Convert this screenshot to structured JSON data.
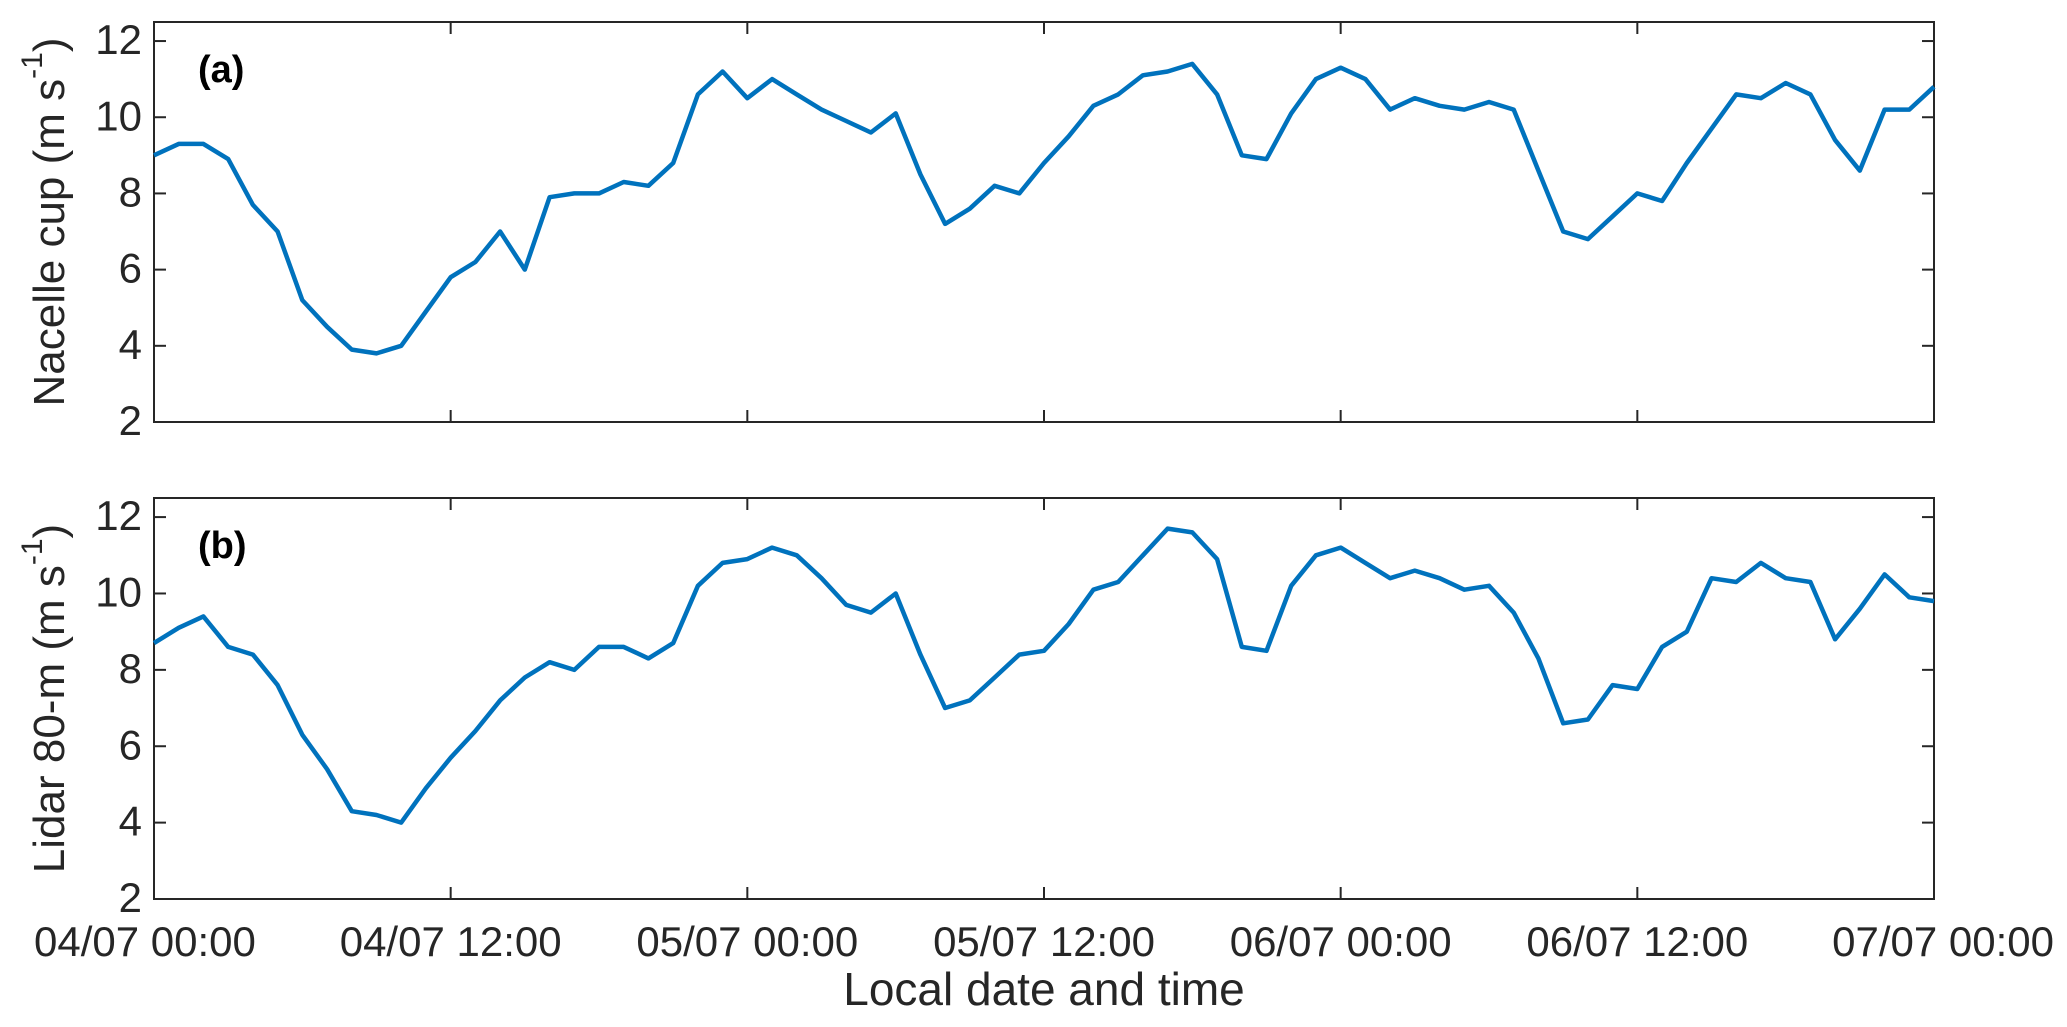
{
  "chart_data": [
    {
      "type": "line",
      "panel_label": "(a)",
      "ylabel": {
        "text": "Nacelle cup (m s",
        "sup": "-1",
        "tail": ")"
      },
      "color": "#0072bd",
      "x": [
        "04/07 00:00",
        "04/07 01:00",
        "04/07 02:00",
        "04/07 03:00",
        "04/07 04:00",
        "04/07 05:00",
        "04/07 06:00",
        "04/07 07:00",
        "04/07 08:00",
        "04/07 09:00",
        "04/07 10:00",
        "04/07 11:00",
        "04/07 12:00",
        "04/07 13:00",
        "04/07 14:00",
        "04/07 15:00",
        "04/07 16:00",
        "04/07 17:00",
        "04/07 18:00",
        "04/07 19:00",
        "04/07 20:00",
        "04/07 21:00",
        "04/07 22:00",
        "04/07 23:00",
        "05/07 00:00",
        "05/07 01:00",
        "05/07 02:00",
        "05/07 03:00",
        "05/07 04:00",
        "05/07 05:00",
        "05/07 06:00",
        "05/07 07:00",
        "05/07 08:00",
        "05/07 09:00",
        "05/07 10:00",
        "05/07 11:00",
        "05/07 12:00",
        "05/07 13:00",
        "05/07 14:00",
        "05/07 15:00",
        "05/07 16:00",
        "05/07 17:00",
        "05/07 18:00",
        "05/07 19:00",
        "05/07 20:00",
        "05/07 21:00",
        "05/07 22:00",
        "05/07 23:00",
        "06/07 00:00",
        "06/07 01:00",
        "06/07 02:00",
        "06/07 03:00",
        "06/07 04:00",
        "06/07 05:00",
        "06/07 06:00",
        "06/07 07:00",
        "06/07 08:00",
        "06/07 09:00",
        "06/07 10:00",
        "06/07 11:00",
        "06/07 12:00",
        "06/07 13:00",
        "06/07 14:00",
        "06/07 15:00",
        "06/07 16:00",
        "06/07 17:00",
        "06/07 18:00",
        "06/07 19:00",
        "06/07 20:00",
        "06/07 21:00",
        "06/07 22:00",
        "06/07 23:00",
        "07/07 00:00"
      ],
      "values": [
        9.0,
        9.3,
        9.3,
        8.9,
        7.7,
        7.0,
        5.2,
        4.5,
        3.9,
        3.8,
        4.0,
        4.9,
        5.8,
        6.2,
        7.0,
        6.0,
        7.9,
        8.0,
        8.0,
        8.3,
        8.2,
        8.8,
        10.6,
        11.2,
        10.5,
        11.0,
        10.6,
        10.2,
        9.9,
        9.6,
        10.1,
        8.5,
        7.2,
        7.6,
        8.2,
        8.0,
        8.8,
        9.5,
        10.3,
        10.6,
        11.1,
        11.2,
        11.4,
        10.6,
        9.0,
        8.9,
        10.1,
        11.0,
        11.3,
        11.0,
        10.2,
        10.5,
        10.3,
        10.2,
        10.4,
        10.2,
        8.6,
        7.0,
        6.8,
        7.4,
        8.0,
        7.8,
        8.8,
        9.7,
        10.6,
        10.5,
        10.9,
        10.6,
        9.4,
        8.6,
        10.2,
        10.2,
        10.8
      ],
      "xlim": [
        "04/07 00:00",
        "07/07 00:00"
      ],
      "xticks": [
        "04/07 00:00",
        "04/07 12:00",
        "05/07 00:00",
        "05/07 12:00",
        "06/07 00:00",
        "06/07 12:00",
        "07/07 00:00"
      ],
      "ylim": [
        2,
        12.5
      ],
      "yticks": [
        2,
        4,
        6,
        8,
        10,
        12
      ]
    },
    {
      "type": "line",
      "panel_label": "(b)",
      "ylabel": {
        "text": "Lidar 80-m (m s",
        "sup": "-1",
        "tail": ")"
      },
      "xlabel": "Local date and time",
      "color": "#0072bd",
      "x": [
        "04/07 00:00",
        "04/07 01:00",
        "04/07 02:00",
        "04/07 03:00",
        "04/07 04:00",
        "04/07 05:00",
        "04/07 06:00",
        "04/07 07:00",
        "04/07 08:00",
        "04/07 09:00",
        "04/07 10:00",
        "04/07 11:00",
        "04/07 12:00",
        "04/07 13:00",
        "04/07 14:00",
        "04/07 15:00",
        "04/07 16:00",
        "04/07 17:00",
        "04/07 18:00",
        "04/07 19:00",
        "04/07 20:00",
        "04/07 21:00",
        "04/07 22:00",
        "04/07 23:00",
        "05/07 00:00",
        "05/07 01:00",
        "05/07 02:00",
        "05/07 03:00",
        "05/07 04:00",
        "05/07 05:00",
        "05/07 06:00",
        "05/07 07:00",
        "05/07 08:00",
        "05/07 09:00",
        "05/07 10:00",
        "05/07 11:00",
        "05/07 12:00",
        "05/07 13:00",
        "05/07 14:00",
        "05/07 15:00",
        "05/07 16:00",
        "05/07 17:00",
        "05/07 18:00",
        "05/07 19:00",
        "05/07 20:00",
        "05/07 21:00",
        "05/07 22:00",
        "05/07 23:00",
        "06/07 00:00",
        "06/07 01:00",
        "06/07 02:00",
        "06/07 03:00",
        "06/07 04:00",
        "06/07 05:00",
        "06/07 06:00",
        "06/07 07:00",
        "06/07 08:00",
        "06/07 09:00",
        "06/07 10:00",
        "06/07 11:00",
        "06/07 12:00",
        "06/07 13:00",
        "06/07 14:00",
        "06/07 15:00",
        "06/07 16:00",
        "06/07 17:00",
        "06/07 18:00",
        "06/07 19:00",
        "06/07 20:00",
        "06/07 21:00",
        "06/07 22:00",
        "06/07 23:00",
        "07/07 00:00"
      ],
      "values": [
        8.7,
        9.1,
        9.4,
        8.6,
        8.4,
        7.6,
        6.3,
        5.4,
        4.3,
        4.2,
        4.0,
        4.9,
        5.7,
        6.4,
        7.2,
        7.8,
        8.2,
        8.0,
        8.6,
        8.6,
        8.3,
        8.7,
        10.2,
        10.8,
        10.9,
        11.2,
        11.0,
        10.4,
        9.7,
        9.5,
        10.0,
        8.4,
        7.0,
        7.2,
        7.8,
        8.4,
        8.5,
        9.2,
        10.1,
        10.3,
        11.0,
        11.7,
        11.6,
        10.9,
        8.6,
        8.5,
        10.2,
        11.0,
        11.2,
        10.8,
        10.4,
        10.6,
        10.4,
        10.1,
        10.2,
        9.5,
        8.3,
        6.6,
        6.7,
        7.6,
        7.5,
        8.6,
        9.0,
        10.4,
        10.3,
        10.8,
        10.4,
        10.3,
        8.8,
        9.6,
        10.5,
        9.9,
        9.8
      ],
      "xlim": [
        "04/07 00:00",
        "07/07 00:00"
      ],
      "xticks": [
        "04/07 00:00",
        "04/07 12:00",
        "05/07 00:00",
        "05/07 12:00",
        "06/07 00:00",
        "06/07 12:00",
        "07/07 00:00"
      ],
      "ylim": [
        2,
        12.5
      ],
      "yticks": [
        2,
        4,
        6,
        8,
        10,
        12
      ]
    }
  ]
}
